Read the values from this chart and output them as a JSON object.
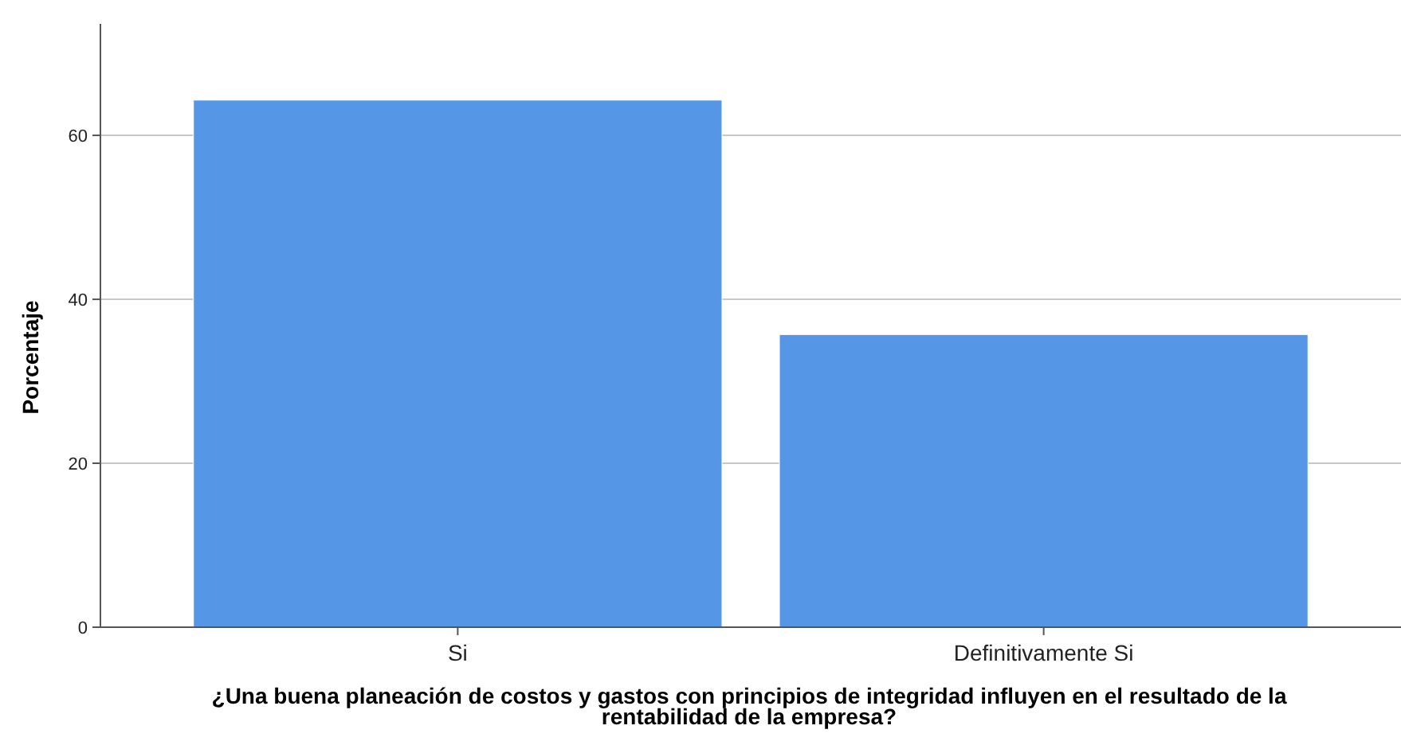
{
  "chart_data": {
    "type": "bar",
    "xlabel": "¿Una buena planeación de costos y gastos con principios de integridad influyen en el resultado de la rentabilidad de la empresa?",
    "ylabel": "Porcentaje",
    "categories": [
      "Si",
      "Definitivamente Si"
    ],
    "values": [
      64.3,
      35.7
    ],
    "color": "#5596e6",
    "ylim": [
      0,
      73.6
    ],
    "yticks": [
      0,
      20,
      40,
      60
    ],
    "grid": "y"
  }
}
